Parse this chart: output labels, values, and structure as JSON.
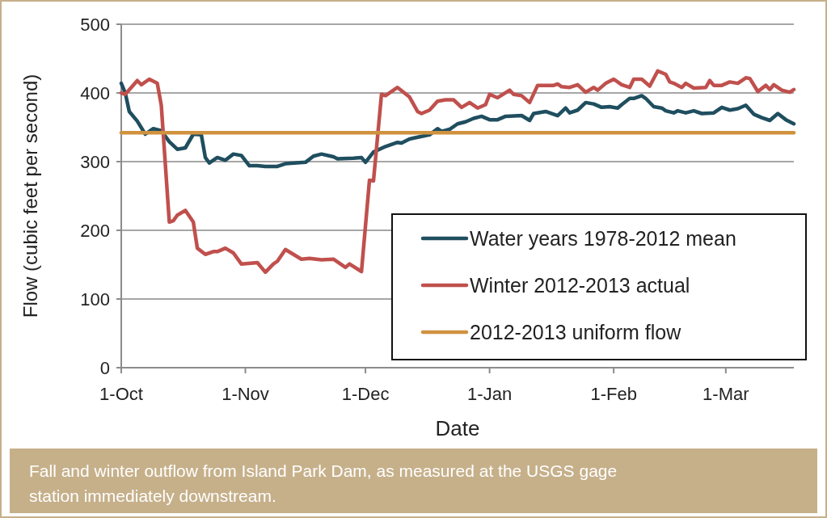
{
  "chart_data": {
    "type": "line",
    "xlabel": "Date",
    "ylabel": "Flow (cubic feet per second)",
    "annotations": [
      "Fall and winter outflow from Island Park Dam, as measured at the USGS gage station immediately downstream."
    ],
    "xlim": [
      "2012-10-01",
      "2013-03-18"
    ],
    "xticks": [
      {
        "value": "2012-10-01",
        "label": "1-Oct"
      },
      {
        "value": "2012-11-01",
        "label": "1-Nov"
      },
      {
        "value": "2012-12-01",
        "label": "1-Dec"
      },
      {
        "value": "2013-01-01",
        "label": "1-Jan"
      },
      {
        "value": "2013-02-01",
        "label": "1-Feb"
      },
      {
        "value": "2013-03-01",
        "label": "1-Mar"
      }
    ],
    "ylim": [
      0,
      500
    ],
    "yticks": [
      0,
      100,
      200,
      300,
      400,
      500
    ],
    "grid": "y",
    "legend": "bottom right",
    "line_style": "solid",
    "series": [
      {
        "name": "Water years 1978-2012 mean",
        "color": "#1f4e5f",
        "x": [
          "2012-10-01",
          "2012-10-02",
          "2012-10-03",
          "2012-10-05",
          "2012-10-07",
          "2012-10-09",
          "2012-10-11",
          "2012-10-13",
          "2012-10-15",
          "2012-10-17",
          "2012-10-19",
          "2012-10-21",
          "2012-10-22",
          "2012-10-23",
          "2012-10-25",
          "2012-10-27",
          "2012-10-29",
          "2012-10-31",
          "2012-11-02",
          "2012-11-04",
          "2012-11-06",
          "2012-11-09",
          "2012-11-11",
          "2012-11-16",
          "2012-11-18",
          "2012-11-20",
          "2012-11-23",
          "2012-11-24",
          "2012-11-28",
          "2012-11-30",
          "2012-12-01",
          "2012-12-03",
          "2012-12-06",
          "2012-12-09",
          "2012-12-10",
          "2012-12-12",
          "2012-12-16",
          "2012-12-17",
          "2012-12-19",
          "2012-12-20",
          "2012-12-22",
          "2012-12-24",
          "2012-12-26",
          "2012-12-28",
          "2012-12-30",
          "2013-01-01",
          "2013-01-03",
          "2013-01-05",
          "2013-01-09",
          "2013-01-11",
          "2013-01-12",
          "2013-01-15",
          "2013-01-18",
          "2013-01-20",
          "2013-01-21",
          "2013-01-23",
          "2013-01-25",
          "2013-01-27",
          "2013-01-29",
          "2013-01-31",
          "2013-02-02",
          "2013-02-03",
          "2013-02-05",
          "2013-02-06",
          "2013-02-08",
          "2013-02-09",
          "2013-02-11",
          "2013-02-13",
          "2013-02-14",
          "2013-02-16",
          "2013-02-17",
          "2013-02-19",
          "2013-02-21",
          "2013-02-23",
          "2013-02-26",
          "2013-02-28",
          "2013-03-02",
          "2013-03-04",
          "2013-03-06",
          "2013-03-08",
          "2013-03-10",
          "2013-03-12",
          "2013-03-14",
          "2013-03-16",
          "2013-03-18"
        ],
        "values": [
          414,
          400,
          373,
          359,
          340,
          348,
          345,
          329,
          318,
          320,
          340,
          339,
          306,
          298,
          306,
          302,
          311,
          309,
          294,
          294,
          293,
          293,
          297,
          299,
          308,
          311,
          307,
          304,
          305,
          306,
          299,
          314,
          322,
          328,
          327,
          333,
          338,
          339,
          348,
          344,
          347,
          355,
          358,
          363,
          366,
          361,
          361,
          366,
          367,
          360,
          370,
          373,
          367,
          378,
          371,
          375,
          386,
          384,
          379,
          380,
          378,
          383,
          392,
          392,
          396,
          392,
          380,
          378,
          374,
          371,
          374,
          371,
          374,
          370,
          371,
          379,
          375,
          377,
          382,
          369,
          364,
          360,
          370,
          361,
          355
        ]
      },
      {
        "name": "Winter 2012-2013 actual",
        "color": "#c0504d",
        "x": [
          "2012-10-01",
          "2012-10-02",
          "2012-10-05",
          "2012-10-06",
          "2012-10-08",
          "2012-10-10",
          "2012-10-11",
          "2012-10-13",
          "2012-10-14",
          "2012-10-15",
          "2012-10-17",
          "2012-10-19",
          "2012-10-20",
          "2012-10-22",
          "2012-10-24",
          "2012-10-25",
          "2012-10-27",
          "2012-10-29",
          "2012-10-31",
          "2012-11-04",
          "2012-11-06",
          "2012-11-08",
          "2012-11-09",
          "2012-11-11",
          "2012-11-15",
          "2012-11-17",
          "2012-11-20",
          "2012-11-23",
          "2012-11-26",
          "2012-11-27",
          "2012-11-30",
          "2012-12-02",
          "2012-12-03",
          "2012-12-05",
          "2012-12-06",
          "2012-12-09",
          "2012-12-12",
          "2012-12-14",
          "2012-12-15",
          "2012-12-17",
          "2012-12-19",
          "2012-12-21",
          "2012-12-23",
          "2012-12-25",
          "2012-12-27",
          "2012-12-29",
          "2012-12-31",
          "2013-01-01",
          "2013-01-03",
          "2013-01-06",
          "2013-01-07",
          "2013-01-09",
          "2013-01-11",
          "2013-01-13",
          "2013-01-17",
          "2013-01-18",
          "2013-01-19",
          "2013-01-21",
          "2013-01-23",
          "2013-01-25",
          "2013-01-27",
          "2013-01-28",
          "2013-01-30",
          "2013-02-01",
          "2013-02-03",
          "2013-02-05",
          "2013-02-06",
          "2013-02-08",
          "2013-02-10",
          "2013-02-12",
          "2013-02-14",
          "2013-02-15",
          "2013-02-16",
          "2013-02-18",
          "2013-02-19",
          "2013-02-21",
          "2013-02-24",
          "2013-02-25",
          "2013-02-26",
          "2013-02-28",
          "2013-03-02",
          "2013-03-04",
          "2013-03-06",
          "2013-03-07",
          "2013-03-09",
          "2013-03-11",
          "2013-03-12",
          "2013-03-13",
          "2013-03-15",
          "2013-03-17",
          "2013-03-18"
        ],
        "values": [
          400,
          398,
          418,
          412,
          420,
          414,
          382,
          212,
          214,
          222,
          229,
          212,
          174,
          165,
          169,
          169,
          174,
          167,
          151,
          153,
          139,
          151,
          155,
          172,
          158,
          159,
          157,
          158,
          146,
          151,
          140,
          273,
          272,
          398,
          396,
          408,
          394,
          373,
          370,
          375,
          388,
          390,
          390,
          379,
          386,
          378,
          383,
          398,
          393,
          404,
          398,
          396,
          386,
          411,
          411,
          413,
          409,
          408,
          412,
          401,
          408,
          404,
          414,
          420,
          412,
          408,
          420,
          420,
          410,
          432,
          427,
          416,
          414,
          408,
          414,
          407,
          408,
          418,
          411,
          411,
          416,
          414,
          422,
          421,
          402,
          411,
          405,
          412,
          404,
          401,
          405
        ]
      },
      {
        "name": "2012-2013 uniform flow",
        "color": "#d0923f",
        "x": [
          "2012-10-01",
          "2013-03-18"
        ],
        "values": [
          342,
          342
        ]
      }
    ]
  }
}
